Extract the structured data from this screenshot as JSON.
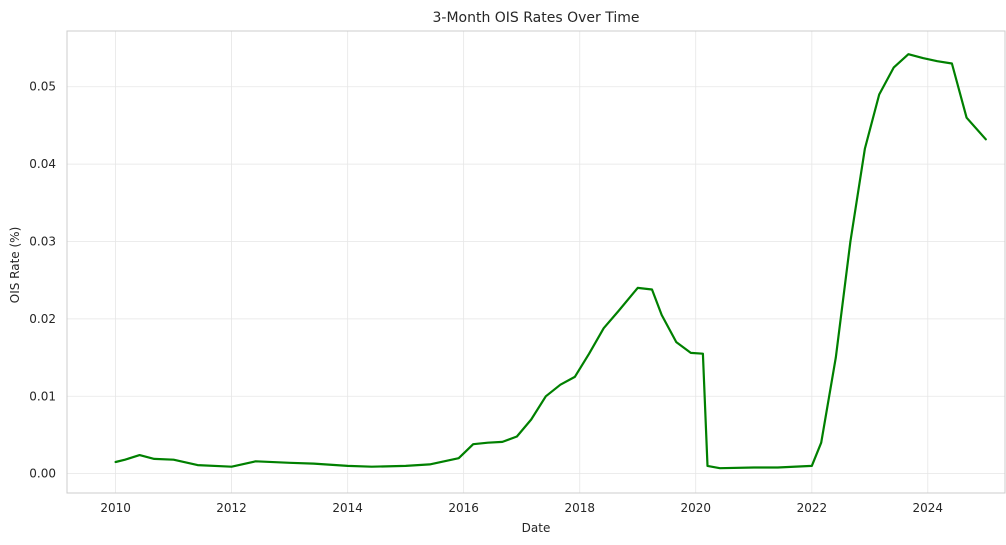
{
  "chart_data": {
    "type": "line",
    "title": "3-Month OIS Rates Over Time",
    "xlabel": "Date",
    "ylabel": "OIS Rate (%)",
    "xlim": [
      "2009-03-01",
      "2025-05-01"
    ],
    "ylim": [
      -0.0025,
      0.0572
    ],
    "x_ticks": [
      "2010",
      "2012",
      "2014",
      "2016",
      "2018",
      "2020",
      "2022",
      "2024"
    ],
    "y_ticks": [
      "0.00",
      "0.01",
      "0.02",
      "0.03",
      "0.04",
      "0.05"
    ],
    "grid": true,
    "line_color": "#008000",
    "series": [
      {
        "x": [
          "2010-01-01",
          "2010-03-01",
          "2010-06-01",
          "2010-09-01",
          "2011-01-01",
          "2011-06-01",
          "2012-01-01",
          "2012-06-01",
          "2013-01-01",
          "2013-06-01",
          "2014-01-01",
          "2014-06-01",
          "2015-01-01",
          "2015-06-01",
          "2015-12-01",
          "2016-03-01",
          "2016-06-01",
          "2016-09-01",
          "2016-12-01",
          "2017-03-01",
          "2017-06-01",
          "2017-09-01",
          "2017-12-01",
          "2018-03-01",
          "2018-06-01",
          "2018-09-01",
          "2019-01-01",
          "2019-04-01",
          "2019-06-01",
          "2019-09-01",
          "2019-12-01",
          "2020-02-15",
          "2020-03-15",
          "2020-06-01",
          "2021-01-01",
          "2021-06-01",
          "2022-01-01",
          "2022-03-01",
          "2022-06-01",
          "2022-09-01",
          "2022-12-01",
          "2023-03-01",
          "2023-06-01",
          "2023-09-01",
          "2023-12-01",
          "2024-03-01",
          "2024-06-01",
          "2024-09-01",
          "2024-12-31"
        ],
        "y": [
          0.0015,
          0.0018,
          0.0024,
          0.0019,
          0.0018,
          0.0011,
          0.0009,
          0.0016,
          0.0014,
          0.0013,
          0.001,
          0.0009,
          0.001,
          0.0012,
          0.002,
          0.0038,
          0.004,
          0.0041,
          0.0048,
          0.007,
          0.01,
          0.0115,
          0.0125,
          0.0155,
          0.0188,
          0.021,
          0.024,
          0.0238,
          0.0205,
          0.017,
          0.0156,
          0.0155,
          0.001,
          0.0007,
          0.0008,
          0.0008,
          0.001,
          0.004,
          0.015,
          0.03,
          0.042,
          0.049,
          0.0525,
          0.0542,
          0.0537,
          0.0533,
          0.053,
          0.046,
          0.0432
        ]
      }
    ]
  }
}
